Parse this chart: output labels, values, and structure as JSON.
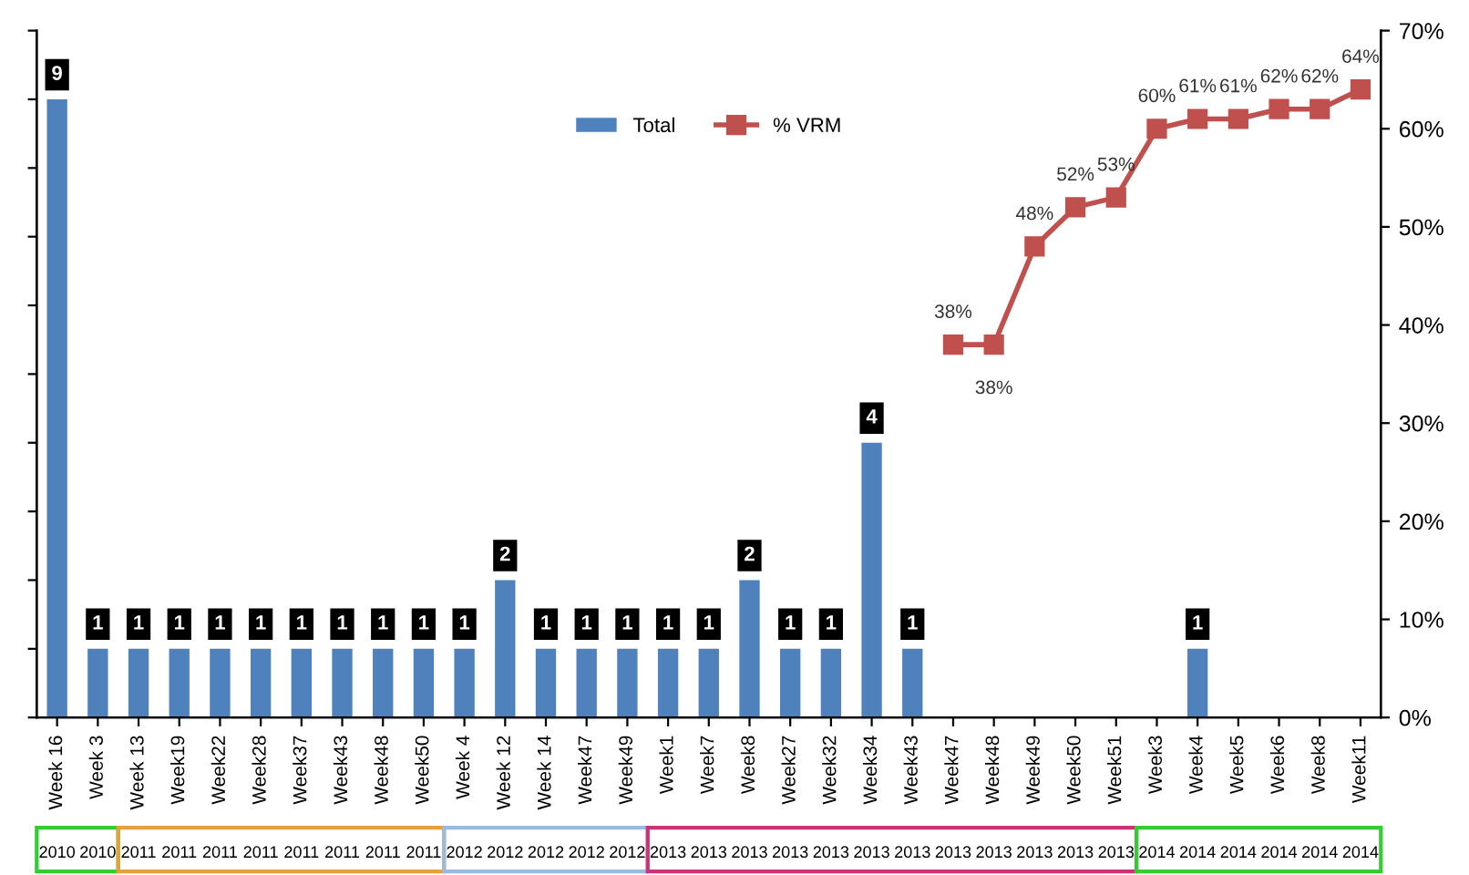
{
  "chart_data": {
    "type": "bar",
    "categories": [
      "Week 16",
      "Week 3",
      "Week 13",
      "Week19",
      "Week22",
      "Week28",
      "Week37",
      "Week43",
      "Week48",
      "Week50",
      "Week 4",
      "Week 12",
      "Week 14",
      "Week47",
      "Week49",
      "Week1",
      "Week7",
      "Week8",
      "Week27",
      "Week32",
      "Week34",
      "Week43",
      "Week47",
      "Week48",
      "Week49",
      "Week50",
      "Week51",
      "Week3",
      "Week4",
      "Week5",
      "Week6",
      "Week8",
      "Week11"
    ],
    "annotations": [
      "2010",
      "2010",
      "2011",
      "2011",
      "2011",
      "2011",
      "2011",
      "2011",
      "2011",
      "2011",
      "2012",
      "2012",
      "2012",
      "2012",
      "2012",
      "2013",
      "2013",
      "2013",
      "2013",
      "2013",
      "2013",
      "2013",
      "2013",
      "2013",
      "2013",
      "2013",
      "2013",
      "2014",
      "2014",
      "2014",
      "2014",
      "2014",
      "2014"
    ],
    "series": [
      {
        "name": "Total",
        "color": "#4f81bd",
        "data_labels": true,
        "values": [
          9,
          1,
          1,
          1,
          1,
          1,
          1,
          1,
          1,
          1,
          1,
          2,
          1,
          1,
          1,
          1,
          1,
          2,
          1,
          1,
          4,
          1,
          null,
          null,
          null,
          null,
          null,
          null,
          1,
          null,
          null,
          null,
          null
        ]
      },
      {
        "name": "% VRM",
        "type": "line",
        "axis": "y2",
        "color": "#c0504d",
        "marker": "square",
        "values": [
          null,
          null,
          null,
          null,
          null,
          null,
          null,
          null,
          null,
          null,
          null,
          null,
          null,
          null,
          null,
          null,
          null,
          null,
          null,
          null,
          null,
          null,
          38,
          38,
          48,
          52,
          53,
          60,
          61,
          61,
          62,
          62,
          64
        ],
        "value_labels": [
          null,
          null,
          null,
          null,
          null,
          null,
          null,
          null,
          null,
          null,
          null,
          null,
          null,
          null,
          null,
          null,
          null,
          null,
          null,
          null,
          null,
          null,
          "38%",
          "38%",
          "48%",
          "52%",
          "53%",
          "60%",
          "61%",
          "61%",
          "62%",
          "62%",
          "64%"
        ]
      }
    ],
    "ylim": [
      0,
      10
    ],
    "yticks": [
      {
        "value": 0,
        "label": null
      },
      {
        "value": 1,
        "label": null
      },
      {
        "value": 2,
        "label": null
      },
      {
        "value": 3,
        "label": null
      },
      {
        "value": 4,
        "label": null
      },
      {
        "value": 5,
        "label": null
      },
      {
        "value": 6,
        "label": null
      },
      {
        "value": 7,
        "label": null
      },
      {
        "value": 8,
        "label": null
      },
      {
        "value": 9,
        "label": null
      },
      {
        "value": 10,
        "label": null
      }
    ],
    "y2lim": [
      0,
      70
    ],
    "y2ticks": [
      {
        "value": 0,
        "label": "0%"
      },
      {
        "value": 10,
        "label": "10%"
      },
      {
        "value": 20,
        "label": "20%"
      },
      {
        "value": 30,
        "label": "30%"
      },
      {
        "value": 40,
        "label": "40%"
      },
      {
        "value": 50,
        "label": "50%"
      },
      {
        "value": 60,
        "label": "60%"
      },
      {
        "value": 70,
        "label": "70%"
      }
    ],
    "grid": false,
    "legend": "top"
  }
}
